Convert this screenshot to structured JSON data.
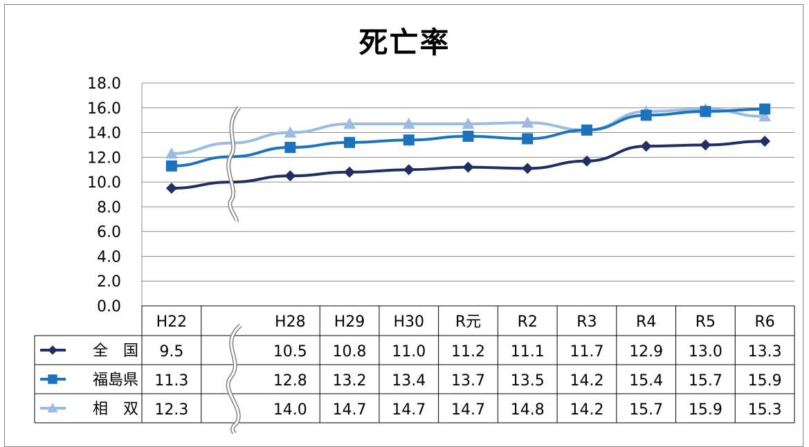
{
  "chart_data": {
    "type": "line",
    "title": "死亡率",
    "categories": [
      "H22",
      "",
      "H28",
      "H29",
      "H30",
      "R元",
      "R2",
      "R3",
      "R4",
      "R5",
      "R6"
    ],
    "ylim": [
      0,
      18
    ],
    "yticks": [
      "0.0",
      "2.0",
      "4.0",
      "6.0",
      "8.0",
      "10.0",
      "12.0",
      "14.0",
      "16.0",
      "18.0"
    ],
    "grid": true,
    "legend": "data-table",
    "series": [
      {
        "name": "全　国",
        "color": "#1f2e63",
        "marker": "diamond",
        "values": [
          9.5,
          null,
          10.5,
          10.8,
          11.0,
          11.2,
          11.1,
          11.7,
          12.9,
          13.0,
          13.3
        ],
        "labels": [
          "9.5",
          "",
          "10.5",
          "10.8",
          "11.0",
          "11.2",
          "11.1",
          "11.7",
          "12.9",
          "13.0",
          "13.3"
        ]
      },
      {
        "name": "福島県",
        "color": "#1b72bd",
        "marker": "square",
        "values": [
          11.3,
          null,
          12.8,
          13.2,
          13.4,
          13.7,
          13.5,
          14.2,
          15.4,
          15.7,
          15.9
        ],
        "labels": [
          "11.3",
          "",
          "12.8",
          "13.2",
          "13.4",
          "13.7",
          "13.5",
          "14.2",
          "15.4",
          "15.7",
          "15.9"
        ]
      },
      {
        "name": "相　双",
        "color": "#9bbbe3",
        "marker": "triangle",
        "values": [
          12.3,
          null,
          14.0,
          14.7,
          14.7,
          14.7,
          14.8,
          14.2,
          15.7,
          15.9,
          15.3
        ],
        "labels": [
          "12.3",
          "",
          "14.0",
          "14.7",
          "14.7",
          "14.7",
          "14.8",
          "14.2",
          "15.7",
          "15.9",
          "15.3"
        ]
      }
    ]
  }
}
